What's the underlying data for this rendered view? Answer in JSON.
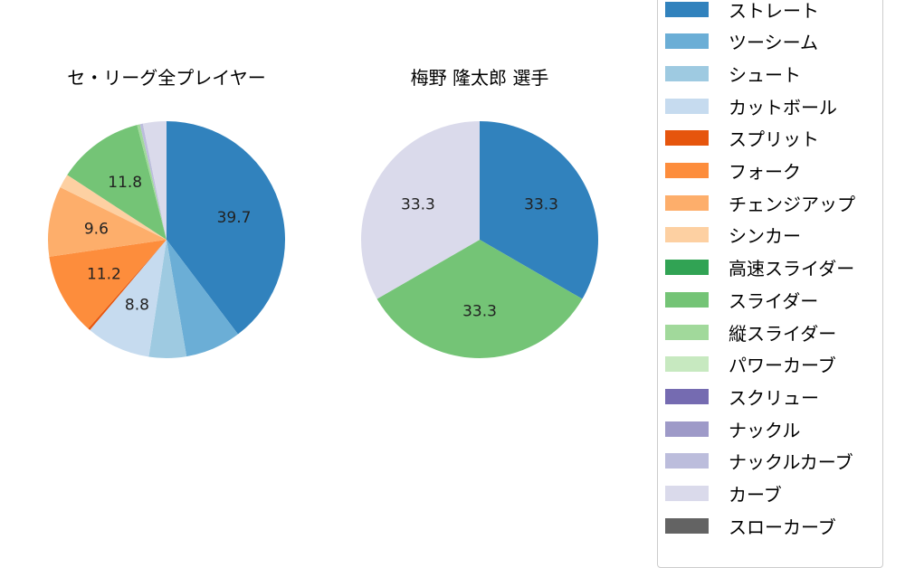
{
  "chart_data": [
    {
      "type": "pie",
      "title": "セ・リーグ全プレイヤー",
      "categories": [
        "ストレート",
        "ツーシーム",
        "シュート",
        "カットボール",
        "スプリット",
        "フォーク",
        "チェンジアップ",
        "シンカー",
        "スライダー",
        "縦スライダー",
        "ナックルカーブ",
        "カーブ"
      ],
      "values": [
        39.7,
        7.6,
        5.1,
        8.8,
        0.3,
        11.2,
        9.6,
        1.9,
        11.8,
        0.4,
        0.4,
        3.2
      ],
      "colors": [
        "#3182bd",
        "#6baed6",
        "#9ecae1",
        "#c6dbef",
        "#e6550d",
        "#fd8d3c",
        "#fdae6b",
        "#fdd0a2",
        "#74c476",
        "#a1d99b",
        "#bcbddc",
        "#dadaeb"
      ],
      "labels_shown": [
        "39.7",
        "",
        "",
        "8.8",
        "",
        "11.2",
        "9.6",
        "",
        "11.8",
        "",
        "",
        ""
      ],
      "start_angle": 90,
      "direction": "clockwise"
    },
    {
      "type": "pie",
      "title": "梅野 隆太郎  選手",
      "categories": [
        "ストレート",
        "スライダー",
        "カーブ"
      ],
      "values": [
        33.3,
        33.3,
        33.3
      ],
      "colors": [
        "#3182bd",
        "#74c476",
        "#dadaeb"
      ],
      "labels_shown": [
        "33.3",
        "33.3",
        "33.3"
      ],
      "start_angle": 90,
      "direction": "clockwise"
    }
  ],
  "titles": {
    "left": "セ・リーグ全プレイヤー",
    "right": "梅野 隆太郎  選手"
  },
  "legend": [
    {
      "label": "ストレート",
      "color": "#3182bd"
    },
    {
      "label": "ツーシーム",
      "color": "#6baed6"
    },
    {
      "label": "シュート",
      "color": "#9ecae1"
    },
    {
      "label": "カットボール",
      "color": "#c6dbef"
    },
    {
      "label": "スプリット",
      "color": "#e6550d"
    },
    {
      "label": "フォーク",
      "color": "#fd8d3c"
    },
    {
      "label": "チェンジアップ",
      "color": "#fdae6b"
    },
    {
      "label": "シンカー",
      "color": "#fdd0a2"
    },
    {
      "label": "高速スライダー",
      "color": "#31a354"
    },
    {
      "label": "スライダー",
      "color": "#74c476"
    },
    {
      "label": "縦スライダー",
      "color": "#a1d99b"
    },
    {
      "label": "パワーカーブ",
      "color": "#c7e9c0"
    },
    {
      "label": "スクリュー",
      "color": "#756bb1"
    },
    {
      "label": "ナックル",
      "color": "#9e9ac8"
    },
    {
      "label": "ナックルカーブ",
      "color": "#bcbddc"
    },
    {
      "label": "カーブ",
      "color": "#dadaeb"
    },
    {
      "label": "スローカーブ",
      "color": "#636363"
    }
  ]
}
